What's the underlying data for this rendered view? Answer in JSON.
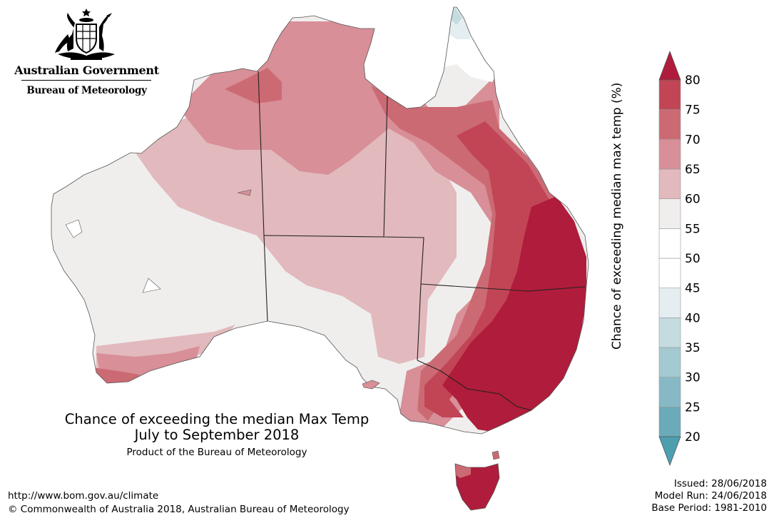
{
  "header": {
    "government": "Australian Government",
    "bureau": "Bureau of Meteorology"
  },
  "logo": {
    "icon": "coat-of-arms-icon"
  },
  "map": {
    "title_line1": "Chance of exceeding the median Max Temp",
    "title_line2": "July to September 2018",
    "product": "Product of the Bureau of Meteorology"
  },
  "legend": {
    "axis_label": "Chance of exceeding median max temp (%)",
    "ticks": [
      "20",
      "25",
      "30",
      "35",
      "40",
      "45",
      "50",
      "55",
      "60",
      "65",
      "70",
      "75",
      "80"
    ],
    "bands": [
      {
        "range": "20-25",
        "color": "#6aaab9"
      },
      {
        "range": "25-30",
        "color": "#86b9c5"
      },
      {
        "range": "30-35",
        "color": "#a3c9d1"
      },
      {
        "range": "35-40",
        "color": "#c4dbe0"
      },
      {
        "range": "40-45",
        "color": "#e4eef0"
      },
      {
        "range": "45-50",
        "color": "#ffffff"
      },
      {
        "range": "50-55",
        "color": "#ffffff"
      },
      {
        "range": "55-60",
        "color": "#efeeed"
      },
      {
        "range": "60-65",
        "color": "#e2b9bd"
      },
      {
        "range": "65-70",
        "color": "#d88f97"
      },
      {
        "range": "70-75",
        "color": "#cc6a74"
      },
      {
        "range": "75-80",
        "color": "#c14555"
      }
    ],
    "over_color": "#b01c3b",
    "under_color": "#4d9fb0"
  },
  "footer": {
    "url": "http://www.bom.gov.au/climate",
    "copyright": "© Commonwealth of Australia 2018, Australian Bureau of Meteorology",
    "issued": "Issued: 28/06/2018",
    "model_run": "Model Run: 24/06/2018",
    "base_period": "Base Period: 1981-2010"
  }
}
